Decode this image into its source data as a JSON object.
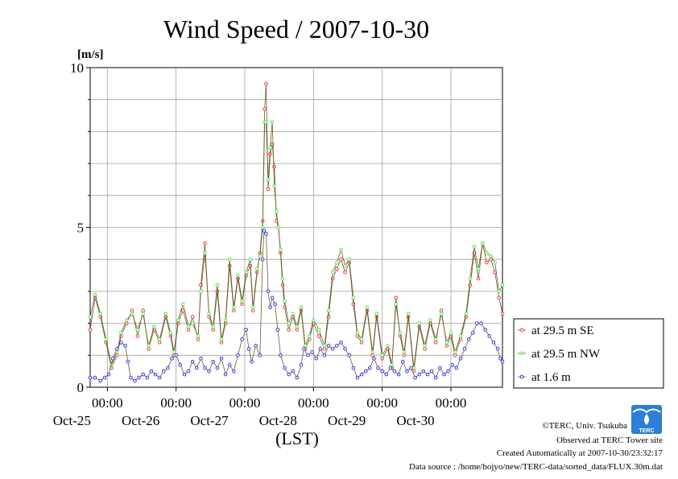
{
  "chart_data": {
    "type": "line",
    "title": "Wind Speed / 2007-10-30",
    "ylabel": "[m/s]",
    "xlabel": "(LST)",
    "ylim": [
      0,
      10
    ],
    "yticks": [
      "0",
      "5",
      "10"
    ],
    "xlim_days": [
      -0.25,
      5.75
    ],
    "xticks": [
      {
        "time": "00:00",
        "date": "Oct-25"
      },
      {
        "time": "00:00",
        "date": "Oct-26"
      },
      {
        "time": "00:00",
        "date": "Oct-27"
      },
      {
        "time": "00:00",
        "date": "Oct-28"
      },
      {
        "time": "00:00",
        "date": "Oct-29"
      },
      {
        "time": "00:00",
        "date": "Oct-30"
      }
    ],
    "grid": true,
    "legend_position": "right",
    "series": [
      {
        "name": "at 29.5 m SE",
        "color": "#ff3030",
        "points": [
          [
            -0.25,
            1.8
          ],
          [
            -0.18,
            2.8
          ],
          [
            -0.1,
            2.2
          ],
          [
            -0.02,
            1.4
          ],
          [
            0.06,
            0.6
          ],
          [
            0.14,
            1.0
          ],
          [
            0.2,
            1.6
          ],
          [
            0.28,
            2.0
          ],
          [
            0.36,
            2.4
          ],
          [
            0.44,
            1.6
          ],
          [
            0.52,
            2.4
          ],
          [
            0.6,
            1.2
          ],
          [
            0.68,
            1.8
          ],
          [
            0.76,
            1.4
          ],
          [
            0.85,
            2.2
          ],
          [
            0.92,
            1.6
          ],
          [
            0.97,
            1.0
          ],
          [
            1.03,
            2.0
          ],
          [
            1.1,
            2.4
          ],
          [
            1.18,
            1.8
          ],
          [
            1.24,
            2.2
          ],
          [
            1.32,
            1.5
          ],
          [
            1.36,
            3.2
          ],
          [
            1.42,
            4.5
          ],
          [
            1.48,
            2.2
          ],
          [
            1.54,
            1.8
          ],
          [
            1.6,
            3.0
          ],
          [
            1.66,
            1.4
          ],
          [
            1.72,
            2.0
          ],
          [
            1.78,
            3.8
          ],
          [
            1.84,
            2.4
          ],
          [
            1.9,
            3.4
          ],
          [
            1.96,
            2.6
          ],
          [
            2.02,
            3.5
          ],
          [
            2.08,
            3.8
          ],
          [
            2.12,
            2.4
          ],
          [
            2.18,
            3.6
          ],
          [
            2.22,
            4.2
          ],
          [
            2.26,
            5.2
          ],
          [
            2.29,
            8.7
          ],
          [
            2.31,
            9.5
          ],
          [
            2.34,
            6.2
          ],
          [
            2.37,
            7.3
          ],
          [
            2.4,
            7.6
          ],
          [
            2.43,
            6.9
          ],
          [
            2.46,
            5.2
          ],
          [
            2.49,
            5.0
          ],
          [
            2.52,
            4.2
          ],
          [
            2.55,
            3.2
          ],
          [
            2.58,
            2.5
          ],
          [
            2.64,
            1.8
          ],
          [
            2.7,
            2.2
          ],
          [
            2.76,
            1.8
          ],
          [
            2.82,
            2.4
          ],
          [
            2.88,
            1.2
          ],
          [
            2.94,
            1.5
          ],
          [
            3.0,
            2.0
          ],
          [
            3.08,
            1.6
          ],
          [
            3.16,
            1.2
          ],
          [
            3.22,
            2.2
          ],
          [
            3.28,
            3.4
          ],
          [
            3.34,
            3.7
          ],
          [
            3.4,
            4.0
          ],
          [
            3.46,
            3.6
          ],
          [
            3.52,
            3.9
          ],
          [
            3.58,
            2.6
          ],
          [
            3.64,
            1.6
          ],
          [
            3.7,
            1.4
          ],
          [
            3.78,
            2.4
          ],
          [
            3.86,
            1.0
          ],
          [
            3.92,
            2.2
          ],
          [
            4.0,
            0.9
          ],
          [
            4.08,
            1.2
          ],
          [
            4.14,
            0.6
          ],
          [
            4.2,
            2.8
          ],
          [
            4.26,
            1.6
          ],
          [
            4.32,
            1.0
          ],
          [
            4.38,
            2.2
          ],
          [
            4.46,
            0.5
          ],
          [
            4.54,
            1.9
          ],
          [
            4.62,
            1.2
          ],
          [
            4.7,
            2.0
          ],
          [
            4.78,
            1.4
          ],
          [
            4.86,
            2.4
          ],
          [
            4.94,
            1.3
          ],
          [
            5.0,
            1.6
          ],
          [
            5.06,
            1.0
          ],
          [
            5.14,
            1.5
          ],
          [
            5.22,
            2.2
          ],
          [
            5.28,
            3.2
          ],
          [
            5.34,
            4.2
          ],
          [
            5.4,
            3.4
          ],
          [
            5.46,
            4.5
          ],
          [
            5.52,
            3.9
          ],
          [
            5.58,
            4.0
          ],
          [
            5.64,
            3.6
          ],
          [
            5.7,
            2.8
          ],
          [
            5.75,
            2.3
          ]
        ]
      },
      {
        "name": "at 29.5 m NW",
        "color": "#44ee44",
        "points": [
          [
            -0.25,
            2.2
          ],
          [
            -0.18,
            2.9
          ],
          [
            -0.1,
            2.3
          ],
          [
            -0.02,
            1.5
          ],
          [
            0.06,
            0.7
          ],
          [
            0.14,
            1.1
          ],
          [
            0.2,
            1.7
          ],
          [
            0.28,
            2.1
          ],
          [
            0.36,
            2.3
          ],
          [
            0.44,
            1.8
          ],
          [
            0.52,
            2.3
          ],
          [
            0.6,
            1.3
          ],
          [
            0.68,
            1.9
          ],
          [
            0.76,
            1.5
          ],
          [
            0.85,
            2.3
          ],
          [
            0.92,
            1.7
          ],
          [
            0.97,
            1.1
          ],
          [
            1.03,
            2.1
          ],
          [
            1.1,
            2.6
          ],
          [
            1.18,
            1.9
          ],
          [
            1.24,
            2.0
          ],
          [
            1.32,
            1.6
          ],
          [
            1.36,
            3.0
          ],
          [
            1.42,
            4.2
          ],
          [
            1.48,
            2.3
          ],
          [
            1.54,
            1.9
          ],
          [
            1.6,
            3.2
          ],
          [
            1.66,
            1.5
          ],
          [
            1.72,
            2.1
          ],
          [
            1.78,
            4.0
          ],
          [
            1.84,
            2.5
          ],
          [
            1.9,
            3.5
          ],
          [
            1.96,
            2.7
          ],
          [
            2.02,
            3.6
          ],
          [
            2.08,
            4.0
          ],
          [
            2.12,
            2.5
          ],
          [
            2.18,
            3.7
          ],
          [
            2.22,
            4.1
          ],
          [
            2.26,
            5.0
          ],
          [
            2.29,
            8.3
          ],
          [
            2.31,
            8.3
          ],
          [
            2.34,
            6.5
          ],
          [
            2.37,
            7.5
          ],
          [
            2.4,
            8.3
          ],
          [
            2.43,
            6.3
          ],
          [
            2.46,
            5.5
          ],
          [
            2.49,
            5.0
          ],
          [
            2.52,
            4.3
          ],
          [
            2.55,
            3.4
          ],
          [
            2.58,
            2.7
          ],
          [
            2.64,
            2.0
          ],
          [
            2.7,
            2.3
          ],
          [
            2.76,
            1.9
          ],
          [
            2.82,
            2.5
          ],
          [
            2.88,
            1.3
          ],
          [
            2.94,
            1.6
          ],
          [
            3.0,
            2.1
          ],
          [
            3.08,
            1.8
          ],
          [
            3.16,
            1.3
          ],
          [
            3.22,
            2.4
          ],
          [
            3.28,
            3.6
          ],
          [
            3.34,
            3.9
          ],
          [
            3.4,
            4.3
          ],
          [
            3.46,
            3.8
          ],
          [
            3.52,
            4.0
          ],
          [
            3.58,
            2.8
          ],
          [
            3.64,
            1.7
          ],
          [
            3.7,
            1.5
          ],
          [
            3.78,
            2.5
          ],
          [
            3.86,
            1.1
          ],
          [
            3.92,
            2.3
          ],
          [
            4.0,
            1.0
          ],
          [
            4.08,
            1.3
          ],
          [
            4.14,
            0.7
          ],
          [
            4.2,
            2.6
          ],
          [
            4.26,
            1.7
          ],
          [
            4.32,
            1.1
          ],
          [
            4.38,
            2.3
          ],
          [
            4.46,
            0.6
          ],
          [
            4.54,
            2.0
          ],
          [
            4.62,
            1.3
          ],
          [
            4.7,
            2.1
          ],
          [
            4.78,
            1.5
          ],
          [
            4.86,
            2.3
          ],
          [
            4.94,
            1.4
          ],
          [
            5.0,
            1.7
          ],
          [
            5.06,
            1.1
          ],
          [
            5.14,
            1.6
          ],
          [
            5.22,
            2.3
          ],
          [
            5.28,
            3.4
          ],
          [
            5.34,
            4.4
          ],
          [
            5.4,
            3.7
          ],
          [
            5.46,
            4.5
          ],
          [
            5.52,
            4.2
          ],
          [
            5.58,
            4.1
          ],
          [
            5.64,
            3.9
          ],
          [
            5.7,
            3.0
          ],
          [
            5.75,
            3.2
          ]
        ]
      },
      {
        "name": "at 1.6 m",
        "color": "#3333ee",
        "points": [
          [
            -0.25,
            0.3
          ],
          [
            -0.18,
            0.3
          ],
          [
            -0.1,
            0.2
          ],
          [
            -0.04,
            0.3
          ],
          [
            0.02,
            0.4
          ],
          [
            0.08,
            0.9
          ],
          [
            0.14,
            1.2
          ],
          [
            0.2,
            1.4
          ],
          [
            0.26,
            1.3
          ],
          [
            0.3,
            0.8
          ],
          [
            0.34,
            0.3
          ],
          [
            0.4,
            0.2
          ],
          [
            0.46,
            0.3
          ],
          [
            0.52,
            0.4
          ],
          [
            0.58,
            0.3
          ],
          [
            0.64,
            0.5
          ],
          [
            0.7,
            0.4
          ],
          [
            0.76,
            0.3
          ],
          [
            0.82,
            0.5
          ],
          [
            0.88,
            0.6
          ],
          [
            0.94,
            0.9
          ],
          [
            1.0,
            1.0
          ],
          [
            1.06,
            0.7
          ],
          [
            1.12,
            0.4
          ],
          [
            1.18,
            0.5
          ],
          [
            1.24,
            0.8
          ],
          [
            1.3,
            0.6
          ],
          [
            1.36,
            0.9
          ],
          [
            1.42,
            0.6
          ],
          [
            1.48,
            0.5
          ],
          [
            1.54,
            0.8
          ],
          [
            1.6,
            0.6
          ],
          [
            1.66,
            0.9
          ],
          [
            1.72,
            0.4
          ],
          [
            1.78,
            0.7
          ],
          [
            1.84,
            0.5
          ],
          [
            1.9,
            1.0
          ],
          [
            1.96,
            1.5
          ],
          [
            2.02,
            1.8
          ],
          [
            2.06,
            1.2
          ],
          [
            2.1,
            0.8
          ],
          [
            2.16,
            1.3
          ],
          [
            2.22,
            1.0
          ],
          [
            2.26,
            4.0
          ],
          [
            2.28,
            4.9
          ],
          [
            2.31,
            4.8
          ],
          [
            2.34,
            3.0
          ],
          [
            2.37,
            2.5
          ],
          [
            2.4,
            2.8
          ],
          [
            2.44,
            2.6
          ],
          [
            2.48,
            1.8
          ],
          [
            2.52,
            1.0
          ],
          [
            2.58,
            0.6
          ],
          [
            2.64,
            0.4
          ],
          [
            2.7,
            0.5
          ],
          [
            2.76,
            0.3
          ],
          [
            2.82,
            0.7
          ],
          [
            2.86,
            1.2
          ],
          [
            2.92,
            1.0
          ],
          [
            2.98,
            1.1
          ],
          [
            3.04,
            0.9
          ],
          [
            3.1,
            1.2
          ],
          [
            3.16,
            1.0
          ],
          [
            3.22,
            1.3
          ],
          [
            3.28,
            1.2
          ],
          [
            3.34,
            1.3
          ],
          [
            3.4,
            1.4
          ],
          [
            3.46,
            1.2
          ],
          [
            3.52,
            1.0
          ],
          [
            3.58,
            0.6
          ],
          [
            3.64,
            0.3
          ],
          [
            3.7,
            0.4
          ],
          [
            3.76,
            0.5
          ],
          [
            3.82,
            0.6
          ],
          [
            3.88,
            0.9
          ],
          [
            3.94,
            0.6
          ],
          [
            4.0,
            0.5
          ],
          [
            4.06,
            0.4
          ],
          [
            4.12,
            0.6
          ],
          [
            4.18,
            0.5
          ],
          [
            4.24,
            0.4
          ],
          [
            4.3,
            0.8
          ],
          [
            4.36,
            0.5
          ],
          [
            4.42,
            0.6
          ],
          [
            4.48,
            0.3
          ],
          [
            4.54,
            0.4
          ],
          [
            4.6,
            0.5
          ],
          [
            4.66,
            0.4
          ],
          [
            4.72,
            0.5
          ],
          [
            4.78,
            0.3
          ],
          [
            4.84,
            0.6
          ],
          [
            4.9,
            0.4
          ],
          [
            4.96,
            0.5
          ],
          [
            5.02,
            0.7
          ],
          [
            5.08,
            0.6
          ],
          [
            5.14,
            0.9
          ],
          [
            5.2,
            1.2
          ],
          [
            5.26,
            1.5
          ],
          [
            5.32,
            1.7
          ],
          [
            5.38,
            2.0
          ],
          [
            5.44,
            2.0
          ],
          [
            5.5,
            1.8
          ],
          [
            5.56,
            1.6
          ],
          [
            5.62,
            1.4
          ],
          [
            5.68,
            1.2
          ],
          [
            5.72,
            0.9
          ],
          [
            5.75,
            0.8
          ]
        ]
      }
    ]
  },
  "credits": {
    "copyright": "©TERC, Univ. Tsukuba",
    "observed": "Observed at TERC Tower site",
    "created": "Created Automatically at 2007-10-30/23:32:17",
    "source": "Data source : /home/hojyo/new/TERC-data/sorted_data/FLUX.30m.dat",
    "logo_text": "TERC"
  }
}
